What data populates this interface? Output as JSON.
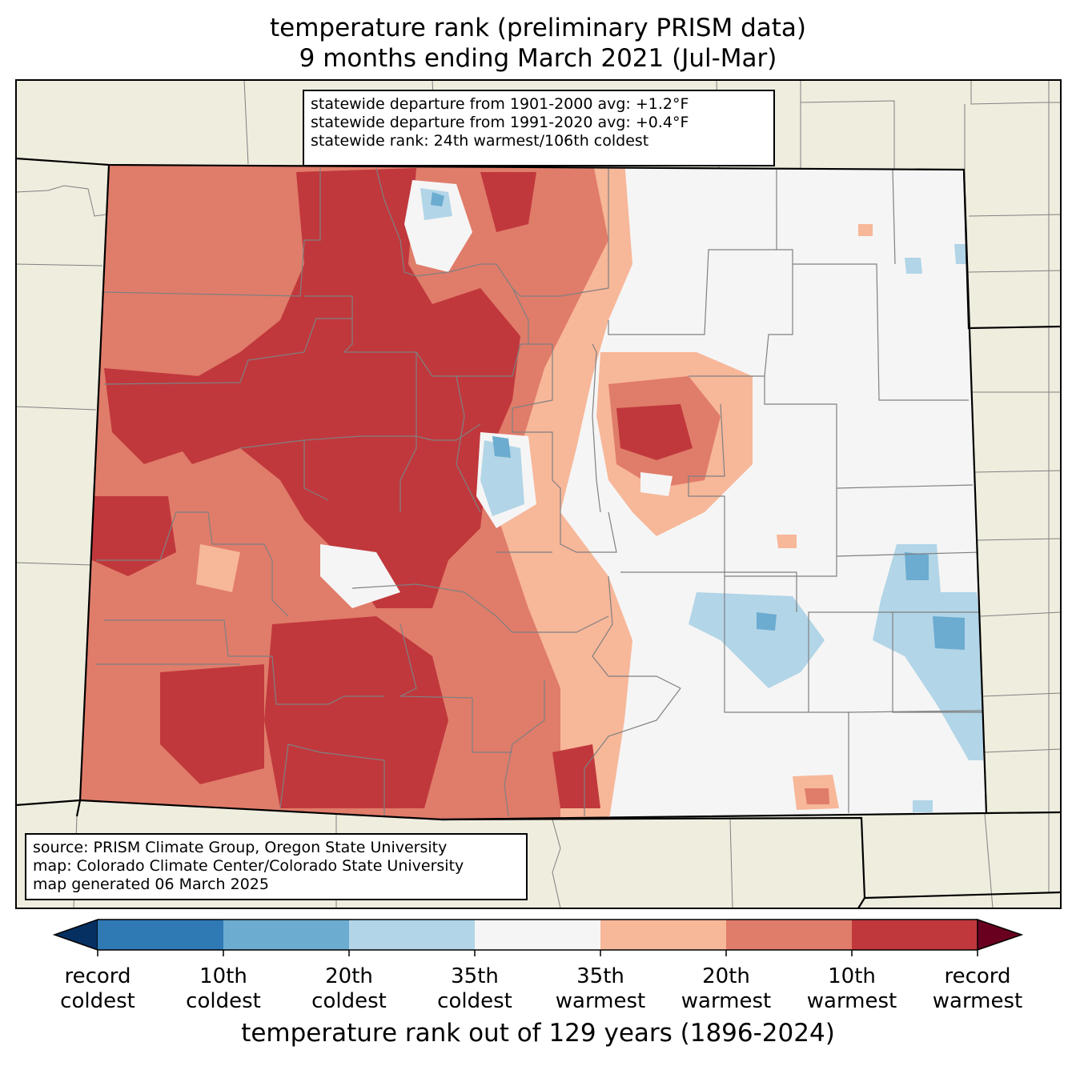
{
  "title": {
    "line1": "temperature rank (preliminary PRISM data)",
    "line2": "9 months ending March 2021 (Jul-Mar)"
  },
  "stats": {
    "line1": "statewide departure from 1901-2000 avg: +1.2°F",
    "line2": "statewide departure from 1991-2020 avg: +0.4°F",
    "line3": "statewide rank: 24th warmest/106th coldest"
  },
  "source": {
    "line1": "source: PRISM Climate Group, Oregon State University",
    "line2": "map: Colorado Climate Center/Colorado State University",
    "line3": "map generated 06 March 2025"
  },
  "colorbar": {
    "title": "temperature rank out of 129 years (1896-2024)",
    "colors": {
      "below": "#053061",
      "c1": "#2f79b5",
      "c2": "#6bacd0",
      "c3": "#b2d5e7",
      "c4": "#f5f5f5",
      "c5": "#f7b799",
      "c6": "#e07c6a",
      "c7": "#c0383c",
      "above": "#6a001f"
    },
    "ticks": [
      {
        "line1": "record",
        "line2": "coldest"
      },
      {
        "line1": "10th",
        "line2": "coldest"
      },
      {
        "line1": "20th",
        "line2": "coldest"
      },
      {
        "line1": "35th",
        "line2": "coldest"
      },
      {
        "line1": "35th",
        "line2": "warmest"
      },
      {
        "line1": "20th",
        "line2": "warmest"
      },
      {
        "line1": "10th",
        "line2": "warmest"
      },
      {
        "line1": "record",
        "line2": "warmest"
      }
    ]
  },
  "map": {
    "land_color": "#efedde",
    "state_border_color": "#000000",
    "county_line_color": "#808080"
  }
}
